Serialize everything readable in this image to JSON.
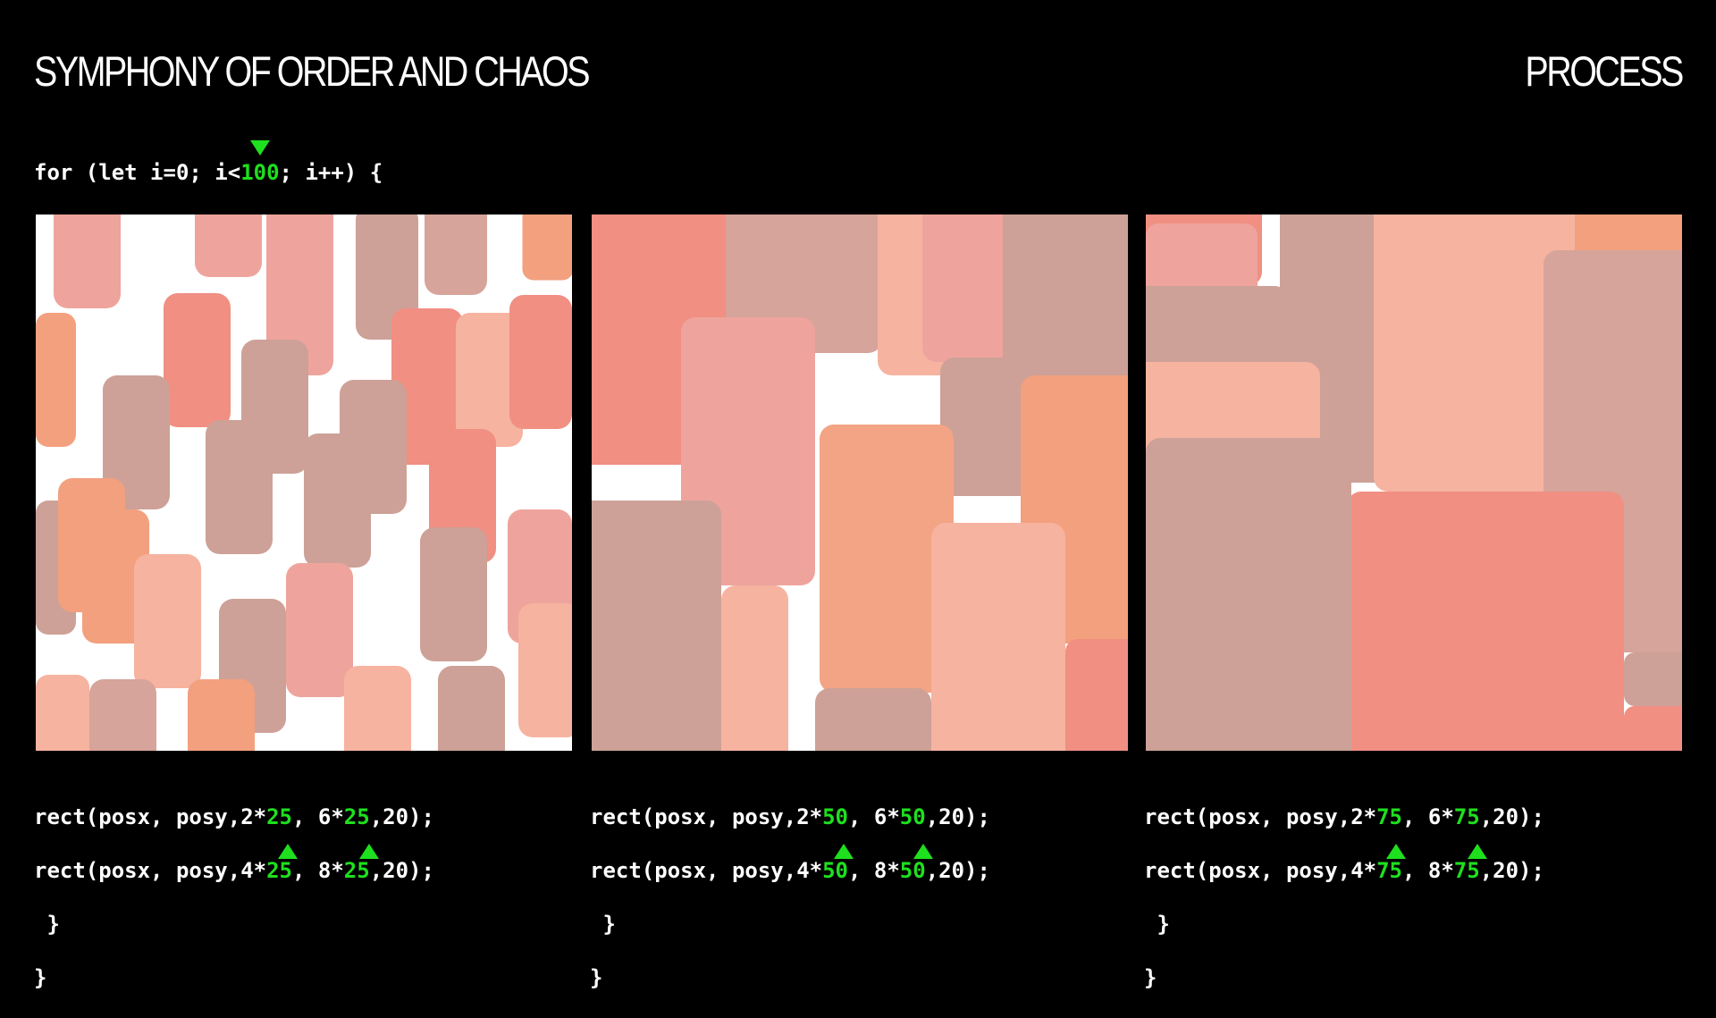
{
  "header": {
    "title": "SYMPHONY OF ORDER AND CHAOS",
    "section": "PROCESS"
  },
  "loop": {
    "before": "for (let i=0; i<",
    "value": "100",
    "after": "; i++) {"
  },
  "palette": [
    "#f3a07f",
    "#f08f82",
    "#eea49d",
    "#f6b3a0",
    "#cda197",
    "#d6a49a",
    "#f3a484"
  ],
  "panels": [
    {
      "line1": {
        "prefix": "rect(posx, posy,2*",
        "a": "25",
        "mid": ", 6*",
        "b": "25",
        "suffix": ",20);"
      },
      "line2": {
        "prefix": "rect(posx, posy,4*",
        "a": "25",
        "mid": ", 8*",
        "b": "25",
        "suffix": ",20);"
      },
      "line3": " }",
      "line4": "}"
    },
    {
      "line1": {
        "prefix": "rect(posx, posy,2*",
        "a": "50",
        "mid": ", 6*",
        "b": "50",
        "suffix": ",20);"
      },
      "line2": {
        "prefix": "rect(posx, posy,4*",
        "a": "50",
        "mid": ", 8*",
        "b": "50",
        "suffix": ",20);"
      },
      "line3": " }",
      "line4": "}"
    },
    {
      "line1": {
        "prefix": "rect(posx, posy,2*",
        "a": "75",
        "mid": ", 6*",
        "b": "75",
        "suffix": ",20);"
      },
      "line2": {
        "prefix": "rect(posx, posy,4*",
        "a": "75",
        "mid": ", 8*",
        "b": "75",
        "suffix": ",20);"
      },
      "line3": " }",
      "line4": "}"
    }
  ]
}
